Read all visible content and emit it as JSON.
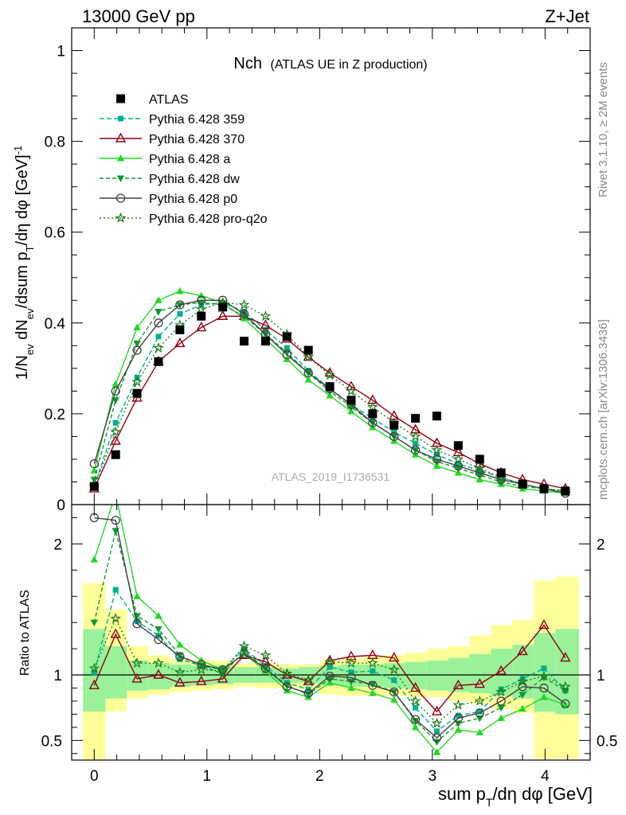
{
  "header": {
    "left": "13000 GeV pp",
    "right": "Z+Jet"
  },
  "side_text": {
    "rivet": "Rivet 3.1.10, ≥ 2M events",
    "mcplots": "mcplots.cern.ch [arXiv:1306.3436]"
  },
  "chart_data": [
    {
      "type": "line",
      "title": "Nch",
      "subtitle": "(ATLAS UE in Z production)",
      "watermark": "ATLAS_2019_I1736531",
      "ylabel": "1/N_ev dN_ev/dsum p_T/dη dφ [GeV]^-1",
      "xlim": [
        -0.2,
        4.4
      ],
      "ylim": [
        0,
        1.05
      ],
      "yticks": [
        {
          "v": 0,
          "label": "0"
        },
        {
          "v": 0.2,
          "label": "0.2"
        },
        {
          "v": 0.4,
          "label": "0.4"
        },
        {
          "v": 0.6,
          "label": "0.6"
        },
        {
          "v": 0.8,
          "label": "0.8"
        },
        {
          "v": 1,
          "label": "1"
        }
      ],
      "x": [
        0,
        0.19,
        0.38,
        0.57,
        0.76,
        0.95,
        1.14,
        1.33,
        1.52,
        1.71,
        1.9,
        2.09,
        2.28,
        2.47,
        2.66,
        2.85,
        3.04,
        3.23,
        3.42,
        3.61,
        3.8,
        3.99,
        4.18
      ],
      "data": {
        "name": "ATLAS",
        "values": [
          0.04,
          0.11,
          0.245,
          0.315,
          0.385,
          0.415,
          0.435,
          0.36,
          0.36,
          0.37,
          0.34,
          0.26,
          0.23,
          0.2,
          0.175,
          0.19,
          0.195,
          0.13,
          0.1,
          0.07,
          0.045,
          0.035,
          0.03
        ]
      },
      "series": [
        {
          "name": "Pythia 6.428 359",
          "color": "#00b08c",
          "dash": "6,3",
          "marker": "square",
          "values": [
            0.04,
            0.18,
            0.28,
            0.37,
            0.42,
            0.44,
            0.445,
            0.425,
            0.385,
            0.345,
            0.295,
            0.255,
            0.22,
            0.19,
            0.16,
            0.135,
            0.11,
            0.09,
            0.075,
            0.06,
            0.045,
            0.035,
            0.03
          ]
        },
        {
          "name": "Pythia 6.428 370",
          "color": "#900012",
          "dash": "",
          "marker": "triangle-open",
          "values": [
            0.035,
            0.14,
            0.235,
            0.315,
            0.355,
            0.39,
            0.415,
            0.415,
            0.395,
            0.365,
            0.325,
            0.29,
            0.26,
            0.23,
            0.195,
            0.165,
            0.135,
            0.115,
            0.09,
            0.07,
            0.055,
            0.045,
            0.035
          ]
        },
        {
          "name": "Pythia 6.428 a",
          "color": "#22d822",
          "dash": "",
          "marker": "triangle",
          "values": [
            0.075,
            0.265,
            0.39,
            0.45,
            0.47,
            0.46,
            0.445,
            0.41,
            0.365,
            0.32,
            0.275,
            0.24,
            0.205,
            0.17,
            0.14,
            0.11,
            0.085,
            0.07,
            0.055,
            0.045,
            0.035,
            0.03,
            0.025
          ]
        },
        {
          "name": "Pythia 6.428 dw",
          "color": "#0e9a30",
          "dash": "5,3",
          "marker": "triangle-down",
          "values": [
            0.055,
            0.23,
            0.355,
            0.425,
            0.44,
            0.445,
            0.44,
            0.415,
            0.375,
            0.335,
            0.29,
            0.25,
            0.215,
            0.18,
            0.15,
            0.12,
            0.095,
            0.08,
            0.065,
            0.05,
            0.04,
            0.035,
            0.03
          ]
        },
        {
          "name": "Pythia 6.428 p0",
          "color": "#404040",
          "dash": "",
          "marker": "circle-open",
          "values": [
            0.09,
            0.25,
            0.34,
            0.4,
            0.44,
            0.45,
            0.45,
            0.42,
            0.375,
            0.33,
            0.29,
            0.255,
            0.22,
            0.18,
            0.15,
            0.12,
            0.1,
            0.085,
            0.07,
            0.055,
            0.045,
            0.035,
            0.025
          ]
        },
        {
          "name": "Pythia 6.428 pro-q2o",
          "color": "#1e7a1e",
          "dash": "2,3",
          "marker": "star",
          "values": [
            0.04,
            0.16,
            0.27,
            0.345,
            0.395,
            0.43,
            0.445,
            0.44,
            0.415,
            0.375,
            0.325,
            0.285,
            0.25,
            0.215,
            0.18,
            0.15,
            0.12,
            0.1,
            0.08,
            0.06,
            0.045,
            0.035,
            0.03
          ]
        }
      ]
    },
    {
      "type": "line",
      "ylabel": "Ratio to ATLAS",
      "xlabel": "sum p_T/dη dφ [GeV]",
      "xlim": [
        -0.2,
        4.4
      ],
      "ylim": [
        0.35,
        2.3
      ],
      "ref_line": 1,
      "yticks": [
        {
          "v": 0.5,
          "label": "0.5"
        },
        {
          "v": 1,
          "label": "1"
        },
        {
          "v": 2,
          "label": "2"
        }
      ],
      "xticks": [
        {
          "v": 0,
          "label": "0"
        },
        {
          "v": 1,
          "label": "1"
        },
        {
          "v": 2,
          "label": "2"
        },
        {
          "v": 3,
          "label": "3"
        },
        {
          "v": 4,
          "label": "4"
        }
      ],
      "bands": {
        "edges": [
          -0.1,
          0.1,
          0.29,
          0.48,
          0.67,
          0.86,
          1.05,
          1.24,
          1.43,
          1.62,
          1.81,
          2.0,
          2.19,
          2.38,
          2.57,
          2.76,
          2.95,
          3.14,
          3.33,
          3.52,
          3.71,
          3.9,
          4.09,
          4.3
        ],
        "yellow_lo": [
          0.35,
          0.72,
          0.82,
          0.85,
          0.87,
          0.88,
          0.89,
          0.91,
          0.9,
          0.9,
          0.89,
          0.85,
          0.84,
          0.84,
          0.84,
          0.83,
          0.83,
          0.8,
          0.78,
          0.74,
          0.71,
          0.36,
          0.36
        ],
        "yellow_hi": [
          1.7,
          1.5,
          1.22,
          1.15,
          1.12,
          1.11,
          1.11,
          1.09,
          1.09,
          1.08,
          1.08,
          1.11,
          1.13,
          1.14,
          1.15,
          1.17,
          1.2,
          1.22,
          1.3,
          1.38,
          1.42,
          1.72,
          1.75
        ],
        "green_lo": [
          0.72,
          0.82,
          0.88,
          0.89,
          0.91,
          0.92,
          0.93,
          0.94,
          0.94,
          0.94,
          0.94,
          0.92,
          0.91,
          0.91,
          0.9,
          0.89,
          0.88,
          0.87,
          0.86,
          0.84,
          0.82,
          0.72,
          0.7
        ],
        "green_hi": [
          1.35,
          1.22,
          1.11,
          1.09,
          1.08,
          1.07,
          1.07,
          1.06,
          1.06,
          1.05,
          1.06,
          1.07,
          1.08,
          1.08,
          1.09,
          1.1,
          1.11,
          1.13,
          1.16,
          1.2,
          1.23,
          1.32,
          1.35
        ]
      },
      "x": [
        0,
        0.19,
        0.38,
        0.57,
        0.76,
        0.95,
        1.14,
        1.33,
        1.52,
        1.71,
        1.9,
        2.09,
        2.28,
        2.47,
        2.66,
        2.85,
        3.04,
        3.23,
        3.42,
        3.61,
        3.8,
        3.99,
        4.18
      ],
      "series": [
        {
          "name": "Pythia 6.428 359",
          "values": [
            1.02,
            1.65,
            1.41,
            1.3,
            1.12,
            1.07,
            1.04,
            1.2,
            1.07,
            0.94,
            0.89,
            1.06,
            1.02,
            1.03,
            0.96,
            0.75,
            0.57,
            0.69,
            0.72,
            0.89,
            0.97,
            1.05,
            0.88
          ]
        },
        {
          "name": "Pythia 6.428 370",
          "values": [
            0.92,
            1.31,
            0.97,
            1.0,
            0.94,
            0.95,
            0.97,
            1.15,
            1.1,
            1.0,
            0.95,
            1.11,
            1.14,
            1.15,
            1.13,
            0.9,
            0.72,
            0.92,
            0.93,
            1.03,
            1.18,
            1.38,
            1.13
          ]
        },
        {
          "name": "Pythia 6.428 a",
          "values": [
            1.88,
            2.38,
            1.6,
            1.45,
            1.23,
            1.11,
            1.04,
            1.16,
            1.03,
            0.88,
            0.83,
            0.94,
            0.9,
            0.86,
            0.81,
            0.6,
            0.41,
            0.58,
            0.56,
            0.67,
            0.74,
            0.83,
            0.77
          ]
        },
        {
          "name": "Pythia 6.428 dw",
          "values": [
            1.4,
            2.1,
            1.45,
            1.35,
            1.15,
            1.07,
            1.01,
            1.18,
            1.05,
            0.92,
            0.85,
            0.97,
            0.95,
            0.93,
            0.87,
            0.65,
            0.49,
            0.63,
            0.67,
            0.75,
            0.85,
            0.98,
            0.88
          ]
        },
        {
          "name": "Pythia 6.428 p0",
          "values": [
            2.2,
            2.18,
            1.39,
            1.27,
            1.14,
            1.08,
            1.04,
            1.16,
            1.05,
            0.91,
            0.86,
            0.99,
            0.98,
            0.92,
            0.87,
            0.66,
            0.52,
            0.67,
            0.71,
            0.8,
            0.91,
            0.9,
            0.78
          ]
        },
        {
          "name": "Pythia 6.428 pro-q2o",
          "values": [
            1.05,
            1.43,
            1.09,
            1.09,
            1.02,
            1.04,
            1.03,
            1.22,
            1.15,
            1.01,
            0.96,
            1.1,
            1.09,
            1.09,
            1.04,
            0.8,
            0.63,
            0.77,
            0.8,
            0.87,
            0.95,
            0.99,
            0.91
          ]
        }
      ]
    }
  ]
}
